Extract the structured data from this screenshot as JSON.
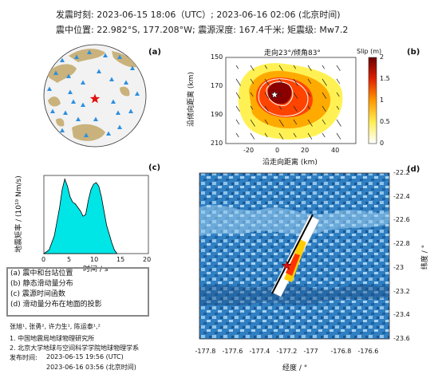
{
  "header": {
    "line1": "发震时刻: 2023-06-15 18:06（UTC）;   2023-06-16  02:06 (北京时间)",
    "line2": "震中位置: 22.982°S,  177.208°W;  震源深度: 167.4千米; 矩震级: Mw7.2"
  },
  "panel_labels": {
    "a": "(a)",
    "b": "(b)",
    "c": "(c)",
    "d": "(d)"
  },
  "colors": {
    "ocean": "#2f7fc2",
    "land": "#c9b27c",
    "station": "#2d8fe0",
    "epicenter": "#e01010",
    "stf_fill": "#00e5e5",
    "fault_line": "#000000"
  },
  "chart_data": [
    {
      "panel": "a",
      "type": "map",
      "epicenter_marker": "red star",
      "stations_marker": "blue triangles"
    },
    {
      "panel": "b",
      "type": "heatmap",
      "title": "走向23°/倾角83°",
      "xlabel": "沿走向距离 (km)",
      "ylabel": "沿倾向距离 (km)",
      "xlim": [
        -30,
        50
      ],
      "ylim": [
        210,
        150
      ],
      "xticks": [
        "-20",
        "0",
        "20",
        "40"
      ],
      "yticks": [
        "150",
        "170",
        "190",
        "210"
      ],
      "colorbar": {
        "label": "Slip (m)",
        "ticks": [
          "0",
          "0.5",
          "1",
          "1.5",
          "2"
        ],
        "range": [
          0,
          2
        ]
      },
      "contour_levels": [
        0.4,
        0.8,
        1.2,
        1.6
      ],
      "peak_slip_location": {
        "x": 0,
        "y": 176
      }
    },
    {
      "panel": "c",
      "type": "area",
      "xlabel": "时间 / s",
      "ylabel": "地震矩率 / (10¹⁹ Nm/s)",
      "xlim": [
        0,
        20
      ],
      "ylim": [
        0,
        2.2
      ],
      "xticks": [
        "0",
        "5",
        "10",
        "15",
        "20"
      ],
      "yticks": [],
      "x": [
        0,
        1,
        2,
        3,
        3.5,
        4,
        4.5,
        5,
        5.5,
        6,
        6.5,
        7,
        7.5,
        8,
        8.5,
        9,
        9.5,
        10,
        10.5,
        11,
        11.5,
        12,
        13,
        13.5,
        14
      ],
      "values": [
        0,
        0.1,
        0.5,
        1.3,
        1.8,
        2.1,
        1.9,
        1.6,
        1.45,
        1.4,
        1.3,
        1.2,
        1.05,
        1.1,
        1.5,
        1.8,
        1.95,
        2.0,
        1.9,
        1.6,
        1.2,
        0.8,
        0.3,
        0.1,
        0
      ]
    },
    {
      "panel": "d",
      "type": "map",
      "xlabel": "经度 / °",
      "ylabel": "纬度 / °",
      "xlim": [
        -177.85,
        -176.45
      ],
      "ylim": [
        -23.6,
        -22.2
      ],
      "xticks": [
        "-177.8",
        "-177.6",
        "-177.4",
        "-177.2",
        "-177",
        "-176.8",
        "-176.6"
      ],
      "yticks": [
        "-22.2",
        "-22.4",
        "-22.6",
        "-22.8",
        "-23",
        "-23.2",
        "-23.4",
        "-23.6"
      ],
      "epicenter": {
        "lon": -177.208,
        "lat": -22.982
      }
    }
  ],
  "legend": [
    "(a) 震中和台站位置",
    "(b) 静态滑动量分布",
    "(c) 震源时间函数",
    "(d) 滑动量分布在地面的投影"
  ],
  "credits": {
    "authors": "张旭¹, 张勇², 许力生¹, 陈运泰¹,²",
    "affil1": "1. 中国地震局地球物理研究所",
    "affil2": "2. 北京大学地球与空间科学学院地球物理学系",
    "release_label": "发布时间:",
    "release_utc": "2023-06-15  19:56 (UTC)",
    "release_bj": "2023-06-16  03:56 (北京时间)"
  }
}
